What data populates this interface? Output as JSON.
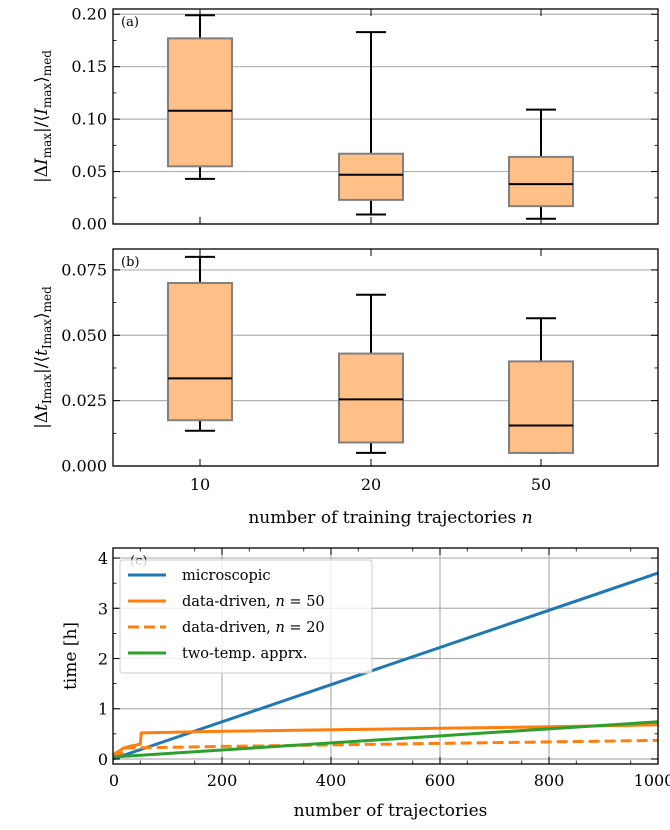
{
  "chart_data": [
    {
      "panel_label": "(a)",
      "type": "box",
      "categories": [
        "10",
        "20",
        "50"
      ],
      "boxes": [
        {
          "whisker_low": 0.043,
          "q1": 0.055,
          "median": 0.108,
          "q3": 0.177,
          "whisker_high": 0.199
        },
        {
          "whisker_low": 0.009,
          "q1": 0.023,
          "median": 0.047,
          "q3": 0.067,
          "whisker_high": 0.183
        },
        {
          "whisker_low": 0.005,
          "q1": 0.017,
          "median": 0.038,
          "q3": 0.064,
          "whisker_high": 0.109
        }
      ],
      "ylabel": "|ΔI_max| / ⟨I_max⟩_med",
      "xlabel": "",
      "ylim": [
        0,
        0.205
      ],
      "yticks": [
        "0.00",
        "0.05",
        "0.10",
        "0.15",
        "0.20"
      ],
      "grid": "horizontal",
      "box_color": "#ffbf86"
    },
    {
      "panel_label": "(b)",
      "type": "box",
      "categories": [
        "10",
        "20",
        "50"
      ],
      "boxes": [
        {
          "whisker_low": 0.0135,
          "q1": 0.0175,
          "median": 0.0335,
          "q3": 0.07,
          "whisker_high": 0.08
        },
        {
          "whisker_low": 0.005,
          "q1": 0.009,
          "median": 0.0255,
          "q3": 0.043,
          "whisker_high": 0.0655
        },
        {
          "whisker_low": 0.005,
          "q1": 0.005,
          "median": 0.0155,
          "q3": 0.04,
          "whisker_high": 0.0565
        }
      ],
      "ylabel": "|Δt_Imax| / ⟨t_Imax⟩_med",
      "xlabel": "number of training trajectories n",
      "ylim": [
        0,
        0.083
      ],
      "yticks": [
        "0.000",
        "0.025",
        "0.050",
        "0.075"
      ],
      "xticks": [
        "10",
        "20",
        "50"
      ],
      "grid": "horizontal",
      "box_color": "#ffbf86"
    },
    {
      "panel_label": "(c)",
      "type": "line",
      "xlabel": "number of trajectories",
      "ylabel": "time [h]",
      "xlim": [
        0,
        1000
      ],
      "ylim": [
        -0.1,
        4.2
      ],
      "xticks": [
        "0",
        "200",
        "400",
        "600",
        "800",
        "1000"
      ],
      "yticks": [
        "0",
        "1",
        "2",
        "3",
        "4"
      ],
      "grid": "both",
      "legend_position": "top-left",
      "series": [
        {
          "name": "microscopic",
          "color": "#1f77b4",
          "style": "solid",
          "x": [
            0,
            1000
          ],
          "y": [
            0.0,
            3.7
          ]
        },
        {
          "name": "data-driven, n = 50",
          "color": "#ff7f0e",
          "style": "solid",
          "x": [
            0,
            5,
            10,
            20,
            30,
            40,
            50,
            52,
            100,
            200,
            400,
            600,
            800,
            1000
          ],
          "y": [
            0.05,
            0.12,
            0.15,
            0.22,
            0.25,
            0.27,
            0.3,
            0.52,
            0.53,
            0.55,
            0.58,
            0.61,
            0.64,
            0.68
          ]
        },
        {
          "name": "data-driven, n = 20",
          "color": "#ff7f0e",
          "style": "dashed",
          "x": [
            0,
            10,
            20,
            22,
            100,
            200,
            400,
            600,
            800,
            1000
          ],
          "y": [
            0.05,
            0.1,
            0.13,
            0.22,
            0.23,
            0.25,
            0.28,
            0.31,
            0.34,
            0.37
          ]
        },
        {
          "name": "two-temp. apprx.",
          "color": "#2ca02c",
          "style": "solid",
          "x": [
            0,
            1000
          ],
          "y": [
            0.04,
            0.74
          ]
        }
      ]
    }
  ]
}
